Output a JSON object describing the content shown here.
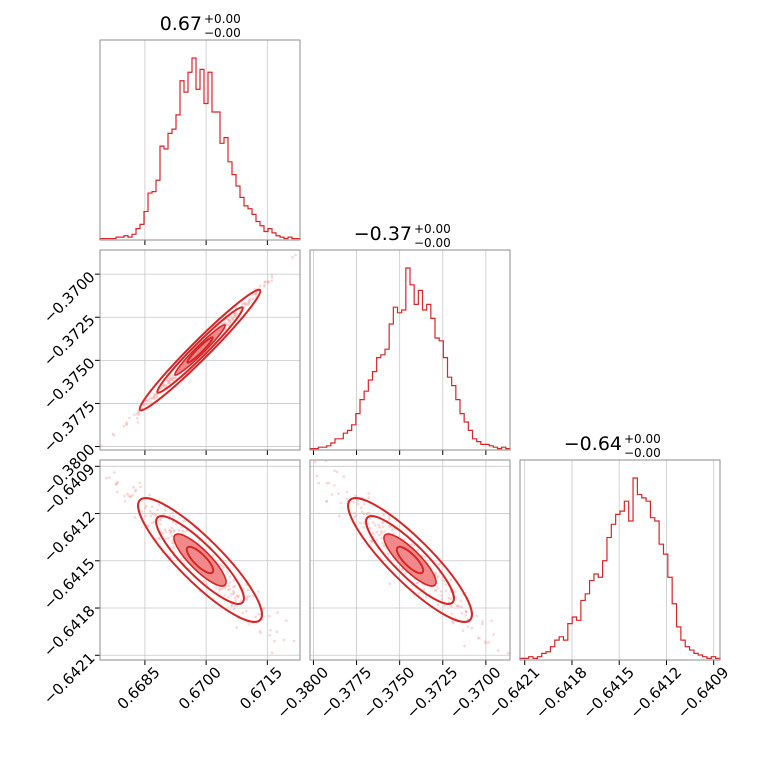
{
  "chart_data": {
    "type": "corner",
    "colors": {
      "series": "#d62728",
      "scatter": "#f3a5a5",
      "grid": "#c8c8c8",
      "frame": "#8c8c8c"
    },
    "grid": true,
    "parameters": [
      {
        "title": {
          "main": "0.67",
          "plus": "+0.00",
          "minus": "−0.00"
        },
        "range": [
          0.6674,
          0.6723
        ],
        "ticks": [
          0.6685,
          0.67,
          0.6715
        ],
        "tick_labels": [
          "0.6685",
          "0.6700",
          "0.6715"
        ],
        "hist": [
          1,
          1,
          1,
          1,
          2,
          2,
          3,
          2,
          4,
          8,
          11,
          20,
          33,
          34,
          42,
          66,
          64,
          75,
          78,
          88,
          112,
          104,
          118,
          128,
          106,
          120,
          96,
          118,
          90,
          90,
          68,
          72,
          55,
          46,
          38,
          30,
          24,
          22,
          18,
          13,
          10,
          6,
          8,
          5,
          3,
          2,
          1,
          2,
          1,
          1
        ]
      },
      {
        "title": {
          "main": "−0.37",
          "plus": "+0.00",
          "minus": "−0.00"
        },
        "range": [
          -0.3802,
          -0.3686
        ],
        "ticks": [
          -0.38,
          -0.3775,
          -0.375,
          -0.3725,
          -0.37
        ],
        "tick_labels": [
          "−0.3800",
          "−0.3775",
          "−0.3750",
          "−0.3725",
          "−0.3700"
        ],
        "hist": [
          1,
          1,
          2,
          2,
          3,
          5,
          8,
          8,
          12,
          14,
          18,
          26,
          36,
          42,
          50,
          56,
          66,
          68,
          72,
          90,
          102,
          98,
          100,
          130,
          118,
          104,
          114,
          100,
          104,
          94,
          80,
          78,
          66,
          52,
          46,
          36,
          26,
          20,
          14,
          8,
          6,
          4,
          4,
          3,
          2,
          1,
          2,
          1
        ]
      },
      {
        "title": {
          "main": "−0.64",
          "plus": "+0.00",
          "minus": "−0.00"
        },
        "range": [
          -0.64213,
          -0.64086
        ],
        "ticks": [
          -0.6421,
          -0.6418,
          -0.6415,
          -0.6412,
          -0.6409
        ],
        "tick_labels": [
          "−0.6421",
          "−0.6418",
          "−0.6415",
          "−0.6412",
          "−0.6409"
        ],
        "hist": [
          1,
          1,
          2,
          1,
          2,
          4,
          5,
          8,
          12,
          14,
          12,
          22,
          26,
          24,
          36,
          40,
          48,
          52,
          50,
          60,
          74,
          82,
          88,
          90,
          96,
          84,
          110,
          100,
          98,
          96,
          86,
          84,
          70,
          64,
          50,
          34,
          20,
          12,
          8,
          6,
          4,
          3,
          2,
          1,
          2,
          1
        ]
      }
    ],
    "pairs": [
      {
        "x": 0,
        "y": 1,
        "rho": 0.998
      },
      {
        "x": 0,
        "y": 2,
        "rho": -0.96
      },
      {
        "x": 1,
        "y": 2,
        "rho": -0.96
      }
    ]
  }
}
